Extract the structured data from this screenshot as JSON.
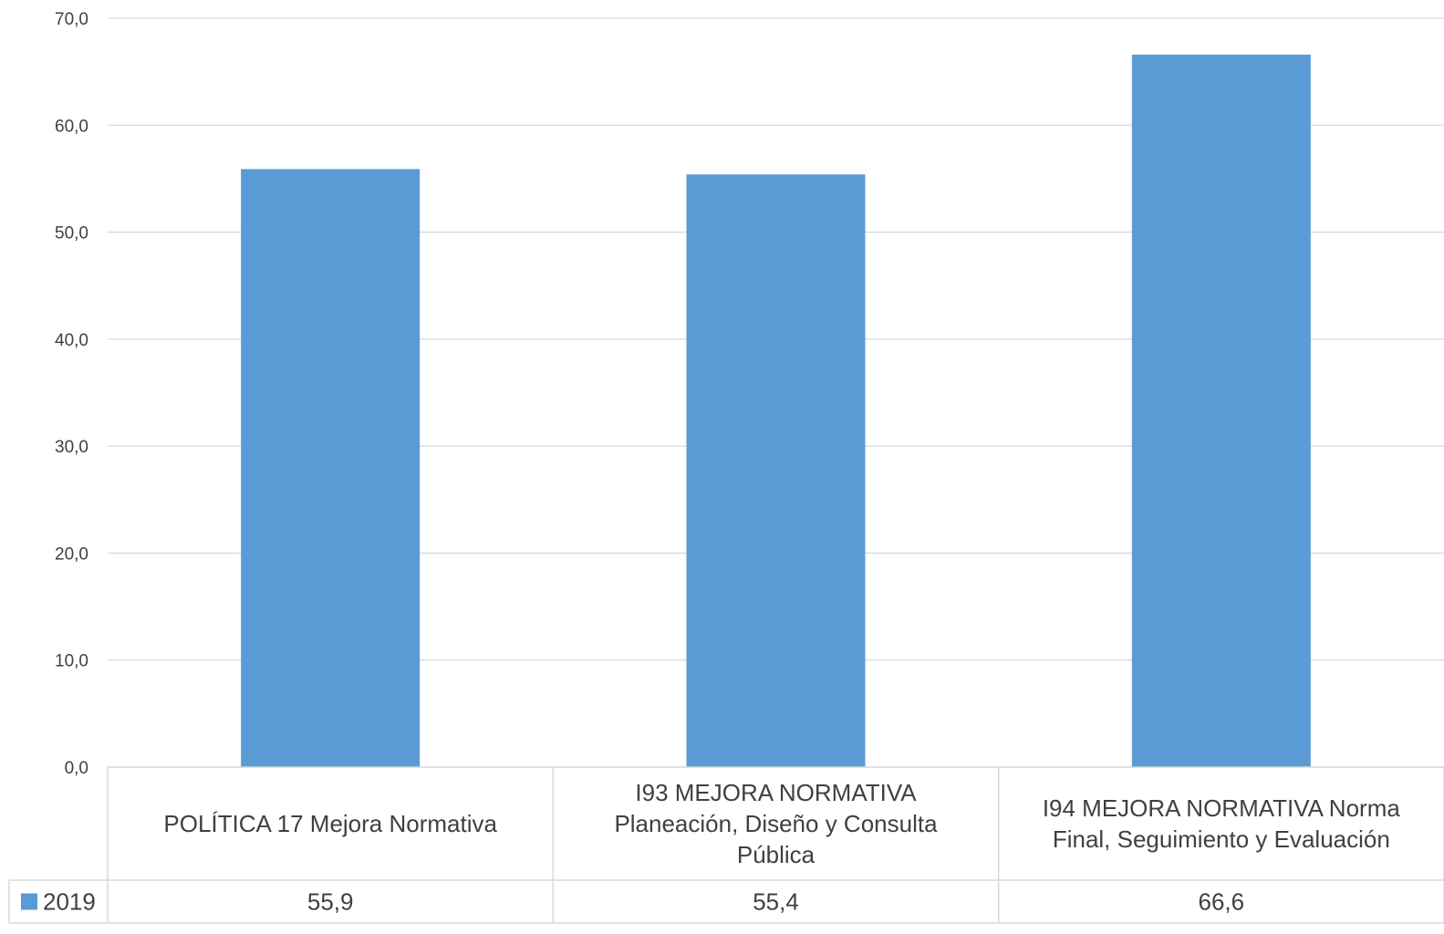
{
  "chart_data": {
    "type": "bar",
    "categories": [
      [
        "POLÍTICA 17 Mejora Normativa"
      ],
      [
        "I93 MEJORA NORMATIVA",
        "Planeación, Diseño y Consulta",
        "Pública"
      ],
      [
        "I94 MEJORA NORMATIVA Norma",
        "Final, Seguimiento y Evaluación"
      ]
    ],
    "series": [
      {
        "name": "2019",
        "values": [
          55.9,
          55.4,
          66.6
        ],
        "value_labels": [
          "55,9",
          "55,4",
          "66,6"
        ],
        "color": "#5b9bd5"
      }
    ],
    "y_ticks": [
      "0,0",
      "10,0",
      "20,0",
      "30,0",
      "40,0",
      "50,0",
      "60,0",
      "70,0"
    ],
    "ylim": [
      0,
      70
    ],
    "grid": true,
    "legend": "data-table",
    "colors": {
      "gridline": "#d9d9d9",
      "table_border": "#d9d9d9",
      "text": "#404040"
    }
  }
}
